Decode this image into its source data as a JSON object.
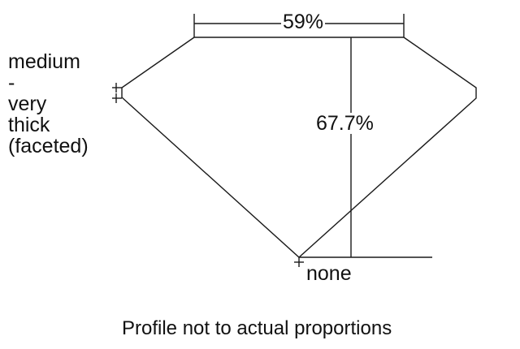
{
  "table_percentage": "59%",
  "depth_percentage": "67.7%",
  "girdle_thickness": [
    "medium",
    "-",
    "very",
    "thick",
    "(faceted)"
  ],
  "culet_size": "none",
  "caption": "Profile not to actual proportions",
  "line_color": "#1a1a1a"
}
